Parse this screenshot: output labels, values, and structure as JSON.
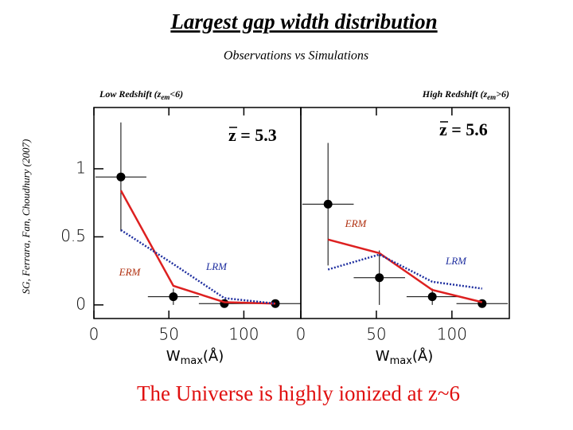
{
  "title": "Largest gap width distribution",
  "subtitle": "Observations vs Simulations",
  "credit": "SG, Ferrara, Fan, Choudhury (2007)",
  "conclusion": "The Universe is highly ionized at z~6",
  "chart_data": [
    {
      "type": "line",
      "title": "Low Redshift (z",
      "title_sub": "em",
      "title_end": "<6)",
      "annotation": "z = 5.3",
      "xlabel": "W",
      "xlabel_sub": "max",
      "xlabel_end": "(Å)",
      "x": [
        18,
        53,
        87,
        121
      ],
      "xlim": [
        0,
        138
      ],
      "ylim": [
        -0.1,
        1.45
      ],
      "xticks": [
        0,
        50,
        100
      ],
      "yticks": [
        0,
        0.5,
        1
      ],
      "series": [
        {
          "mark": "points",
          "color": "#000000",
          "values": [
            0.94,
            0.06,
            0.01,
            0.01
          ],
          "yerr": [
            0.4,
            0.06,
            0.01,
            0.01
          ],
          "xerr": [
            17,
            17,
            17,
            17
          ]
        },
        {
          "name": "ERM",
          "mark": "line",
          "style": "solid",
          "color": "#dd2020",
          "values": [
            0.84,
            0.14,
            0.02,
            0.01
          ]
        },
        {
          "name": "LRM",
          "mark": "line",
          "style": "dotted",
          "color": "#2030a0",
          "values": [
            0.55,
            0.3,
            0.05,
            0.01
          ]
        }
      ]
    },
    {
      "type": "line",
      "title": "High Redshift (z",
      "title_sub": "em",
      "title_end": ">6)",
      "annotation": "z = 5.6",
      "xlabel": "W",
      "xlabel_sub": "max",
      "xlabel_end": "(Å)",
      "x": [
        18,
        52,
        87,
        120
      ],
      "xlim": [
        0,
        138
      ],
      "ylim": [
        -0.1,
        1.45
      ],
      "xticks": [
        0,
        50,
        100
      ],
      "series": [
        {
          "mark": "points",
          "color": "#000000",
          "values": [
            0.74,
            0.2,
            0.06,
            0.01
          ],
          "yerr": [
            0.45,
            0.2,
            0.06,
            0.01
          ],
          "xerr": [
            17,
            17,
            17,
            17
          ]
        },
        {
          "name": "ERM",
          "mark": "line",
          "style": "solid",
          "color": "#dd2020",
          "values": [
            0.48,
            0.38,
            0.11,
            0.02
          ]
        },
        {
          "name": "LRM",
          "mark": "line",
          "style": "dotted",
          "color": "#2030a0",
          "values": [
            0.26,
            0.37,
            0.17,
            0.12
          ]
        }
      ]
    }
  ]
}
